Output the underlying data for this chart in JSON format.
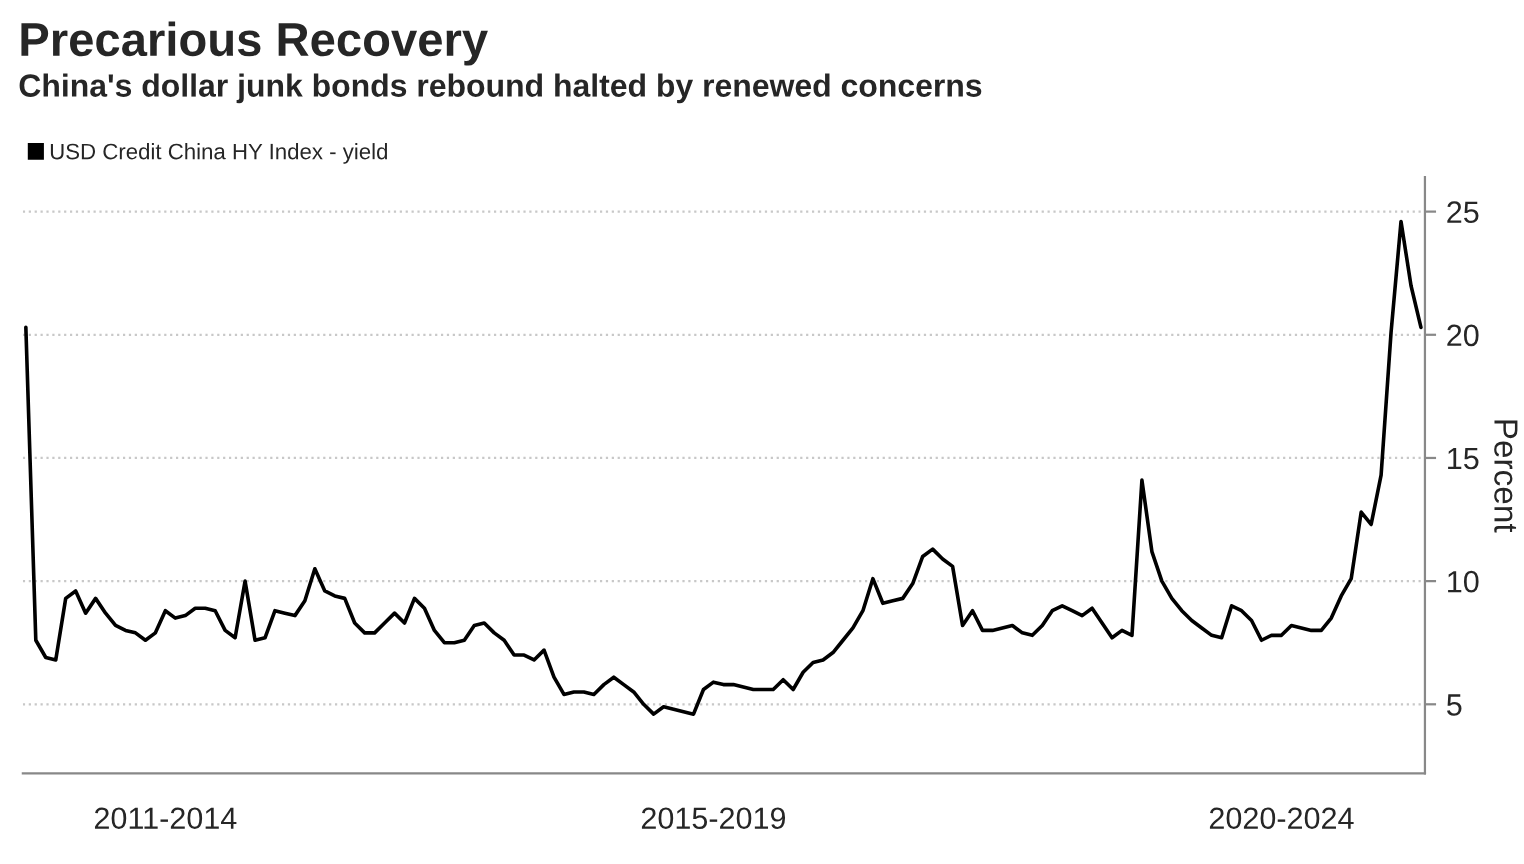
{
  "chart_data": {
    "type": "line",
    "title": "Precarious Recovery",
    "subtitle": "China's dollar junk bonds rebound halted by renewed concerns",
    "ylabel": "Percent",
    "legend": "top left",
    "grid": "y",
    "ylim": [
      2.2,
      26.4
    ],
    "yticks": [
      5,
      10,
      15,
      20,
      25
    ],
    "categories": [
      null,
      null,
      null,
      null,
      null,
      null,
      null,
      null,
      null,
      null,
      null,
      null,
      null,
      null,
      "2011-2014",
      null,
      null,
      null,
      null,
      null,
      null,
      null,
      null,
      null,
      null,
      null,
      null,
      null,
      null,
      null,
      null,
      null,
      null,
      null,
      null,
      null,
      null,
      null,
      null,
      null,
      null,
      null,
      null,
      null,
      null,
      null,
      null,
      null,
      null,
      null,
      null,
      null,
      null,
      null,
      null,
      null,
      null,
      null,
      null,
      null,
      null,
      null,
      null,
      null,
      null,
      null,
      null,
      null,
      null,
      "2015-2019",
      null,
      null,
      null,
      null,
      null,
      null,
      null,
      null,
      null,
      null,
      null,
      null,
      null,
      null,
      null,
      null,
      null,
      null,
      null,
      null,
      null,
      null,
      null,
      null,
      null,
      null,
      null,
      null,
      null,
      null,
      null,
      null,
      null,
      null,
      null,
      null,
      null,
      null,
      null,
      null,
      null,
      null,
      null,
      null,
      null,
      null,
      null,
      null,
      null,
      null,
      null,
      null,
      null,
      null,
      null,
      null,
      "2020-2024",
      null,
      null,
      null,
      null,
      null,
      null,
      null,
      null,
      null,
      null,
      null,
      null,
      null,
      null
    ],
    "series": [
      {
        "name": "USD Credit China HY Index - yield",
        "color": "#000000",
        "values": [
          20.3,
          7.6,
          6.9,
          6.8,
          9.3,
          9.6,
          8.7,
          9.3,
          8.7,
          8.2,
          8.0,
          7.9,
          7.6,
          7.9,
          8.8,
          8.5,
          8.6,
          8.9,
          8.9,
          8.8,
          8.0,
          7.7,
          10.0,
          7.6,
          7.7,
          8.8,
          8.7,
          8.6,
          9.2,
          10.5,
          9.6,
          9.4,
          9.3,
          8.3,
          7.9,
          7.9,
          8.3,
          8.7,
          8.3,
          9.3,
          8.9,
          8.0,
          7.5,
          7.5,
          7.6,
          8.2,
          8.3,
          7.9,
          7.6,
          7.0,
          7.0,
          6.8,
          7.2,
          6.1,
          5.4,
          5.5,
          5.5,
          5.4,
          5.8,
          6.1,
          5.8,
          5.5,
          5.0,
          4.6,
          4.9,
          4.8,
          4.7,
          4.6,
          5.6,
          5.9,
          5.8,
          5.8,
          5.7,
          5.6,
          5.6,
          5.6,
          6.0,
          5.6,
          6.3,
          6.7,
          6.8,
          7.1,
          7.6,
          8.1,
          8.8,
          10.1,
          9.1,
          9.2,
          9.3,
          9.9,
          11.0,
          11.3,
          10.9,
          10.6,
          8.2,
          8.8,
          8.0,
          8.0,
          8.1,
          8.2,
          7.9,
          7.8,
          8.2,
          8.8,
          9.0,
          8.8,
          8.6,
          8.9,
          8.3,
          7.7,
          8.0,
          7.8,
          14.1,
          11.2,
          10.0,
          9.3,
          8.8,
          8.4,
          8.1,
          7.8,
          7.7,
          9.0,
          8.8,
          8.4,
          7.6,
          7.8,
          7.8,
          8.2,
          8.1,
          8.0,
          8.0,
          8.5,
          9.4,
          10.1,
          12.8,
          12.3,
          14.3,
          20.1,
          24.6,
          22.0,
          20.3
        ]
      }
    ]
  }
}
